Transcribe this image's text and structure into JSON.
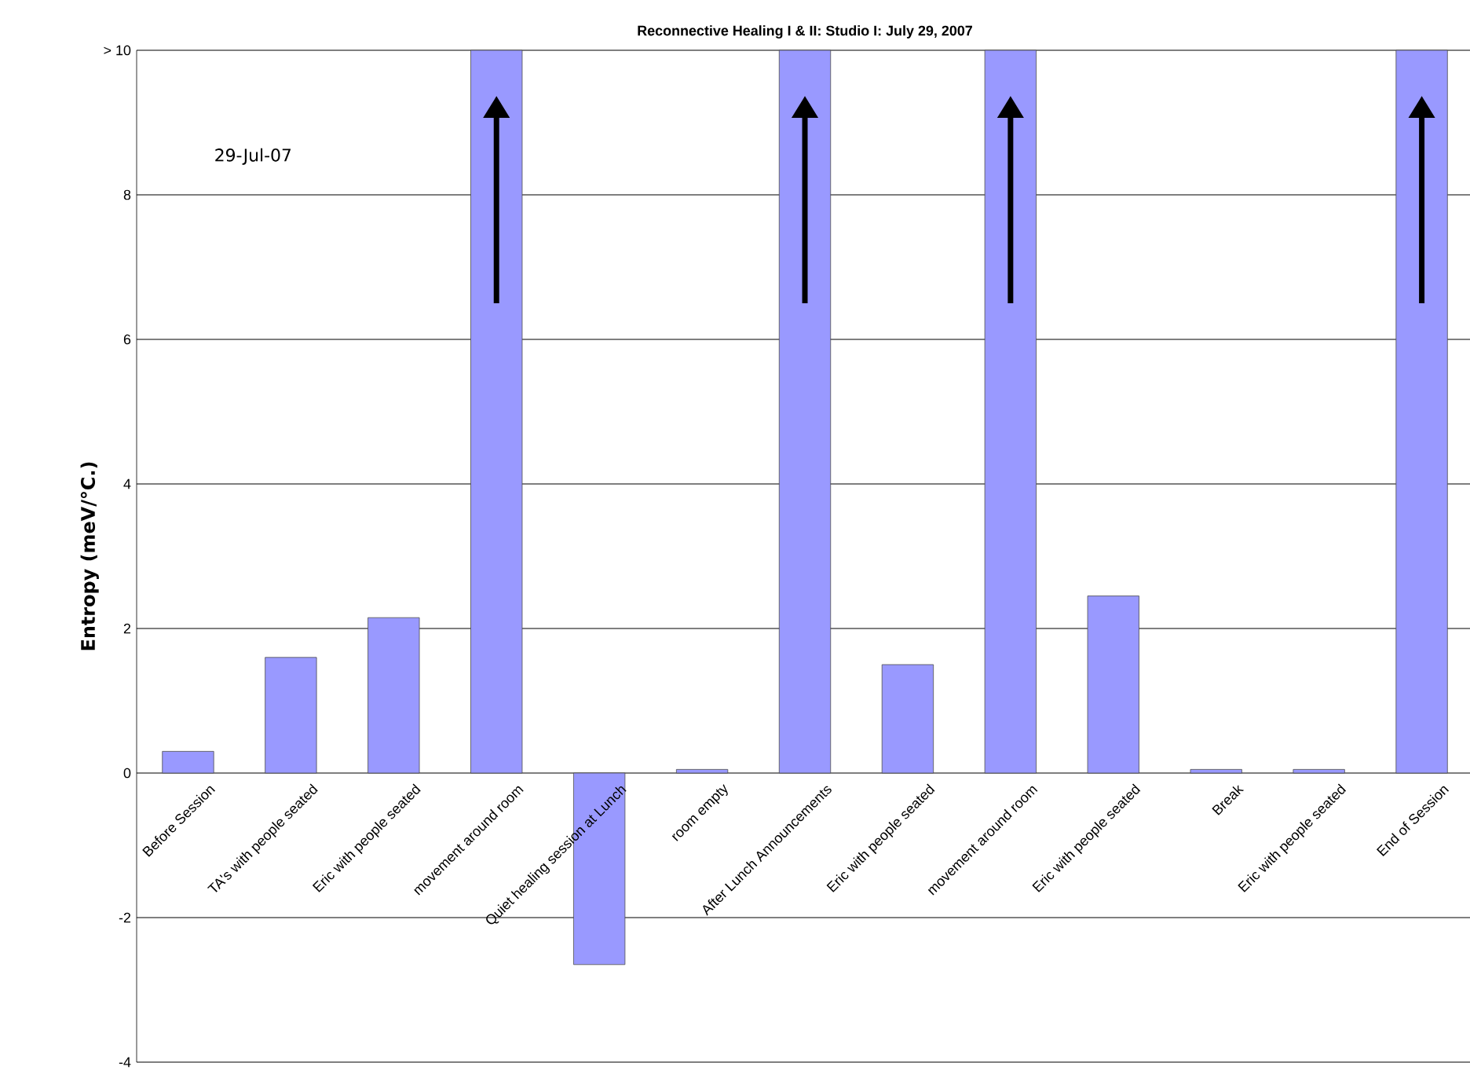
{
  "chart_data": {
    "type": "bar",
    "title": "Reconnective Healing I & II: Studio I: July 29, 2007",
    "ylabel": "Entropy (meV/°C.)",
    "categories": [
      "Before Session",
      "TA's with people seated",
      "Eric with people seated",
      "movement around room",
      "Quiet healing session at Lunch",
      "room empty",
      "After Lunch Announcements",
      "Eric with people seated",
      "movement around room",
      "Eric with people seated",
      "Break",
      "Eric with people seated",
      "End of Session"
    ],
    "values": [
      0.3,
      1.6,
      2.15,
      10,
      -2.65,
      0.05,
      10,
      1.5,
      10,
      2.45,
      0.05,
      0.05,
      10
    ],
    "color": "#9999ff",
    "ylim": [
      -4,
      10
    ],
    "yticks": [
      -4,
      -2,
      0,
      2,
      4,
      6,
      8,
      {
        "value": 10,
        "label": "> 10"
      }
    ],
    "grid": "y",
    "annotations": [
      "29-Jul-07"
    ]
  }
}
